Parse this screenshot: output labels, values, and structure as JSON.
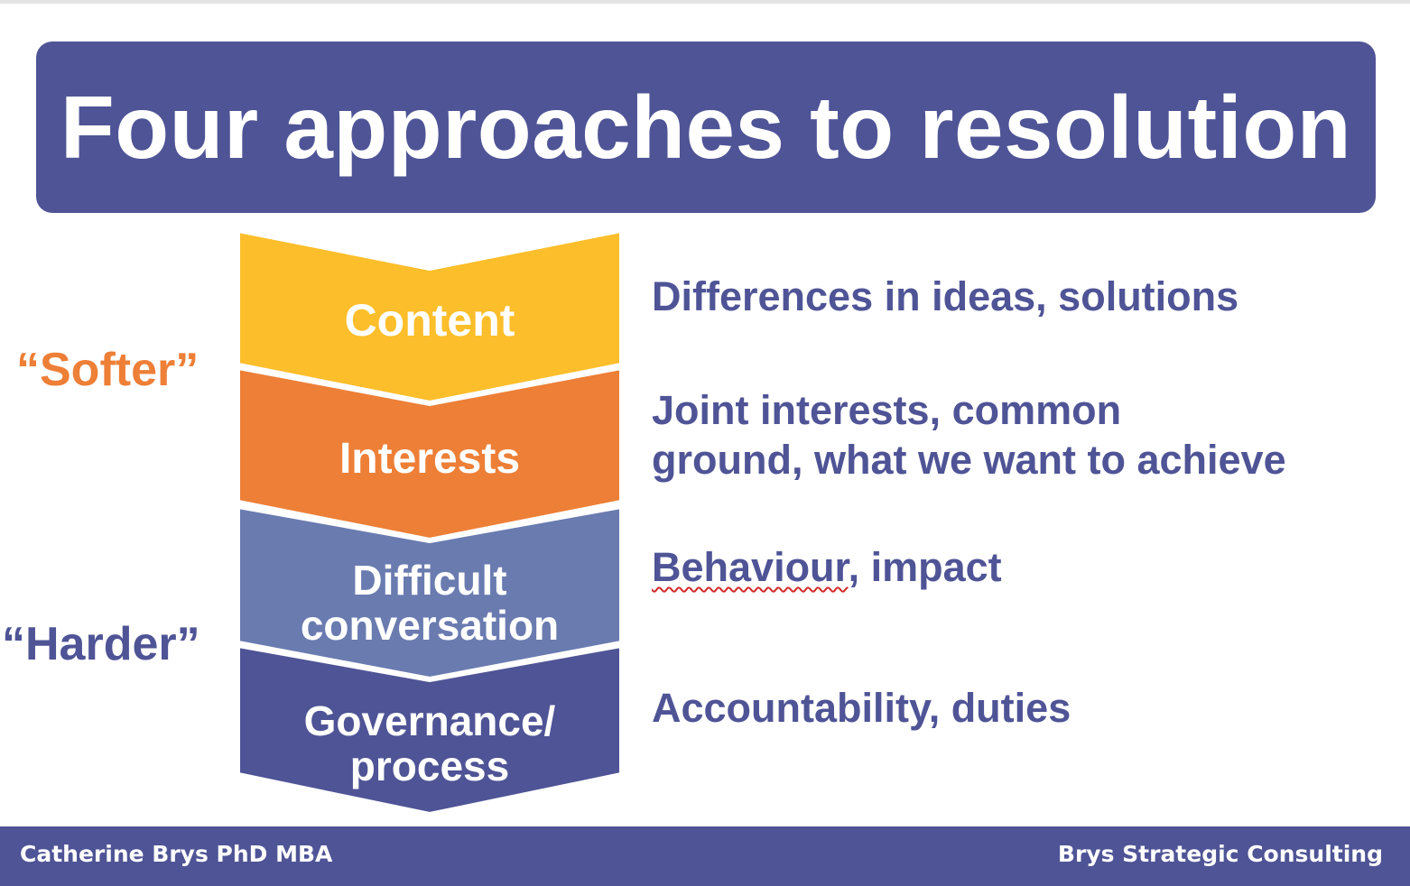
{
  "title": "Four approaches to resolution",
  "chevrons": [
    {
      "label": "Content",
      "color": "#fcbe2a"
    },
    {
      "label": "Interests",
      "color": "#ed7f37"
    },
    {
      "label_line1": "Difficult",
      "label_line2": "conversation",
      "color": "#6a7bb0"
    },
    {
      "label_line1": "Governance/",
      "label_line2": "process",
      "color": "#4f5496"
    }
  ],
  "side_labels": {
    "softer": "“Softer”",
    "harder": "“Harder”",
    "softer_color": "#ed7f37",
    "harder_color": "#4f5496"
  },
  "descriptions": {
    "content": "Differences in ideas, solutions",
    "interests_line1": "Joint interests, common",
    "interests_line2": "ground, what we want to achieve",
    "difficult_word": "Behaviour",
    "difficult_rest": ", impact",
    "governance": "Accountability, duties"
  },
  "footer": {
    "left": "Catherine Brys PhD MBA",
    "right": "Brys Strategic Consulting"
  },
  "colors": {
    "brand": "#4f5496",
    "text_on_brand": "#ffffff"
  }
}
